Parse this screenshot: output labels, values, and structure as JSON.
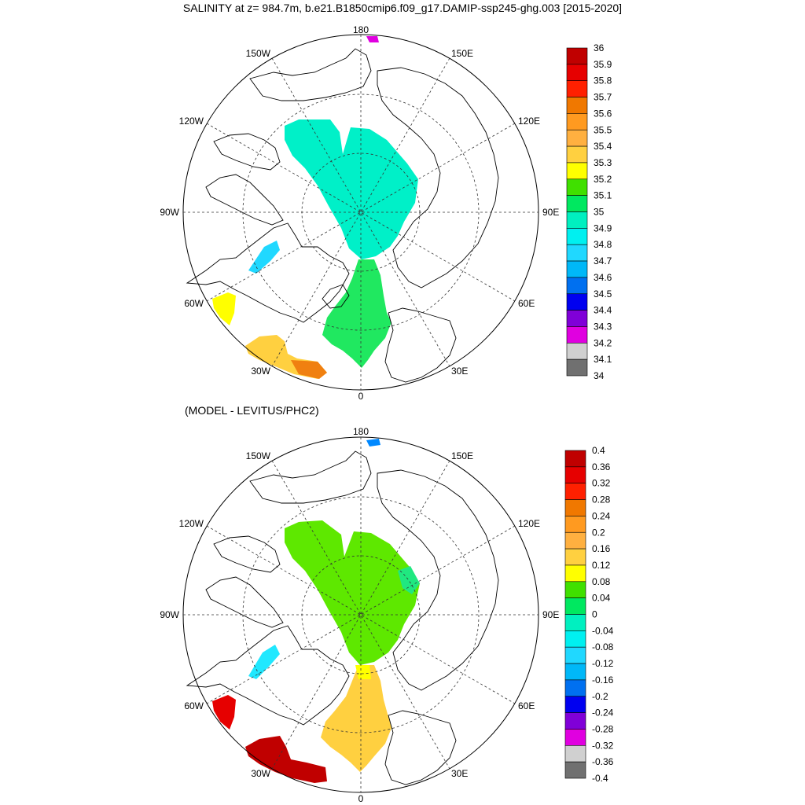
{
  "title": "SALINITY at z= 984.7m, b.e21.B1850cmip6.f09_g17.DAMIP-ssp245-ghg.003 [2015-2020]",
  "diff_title": "(MODEL - LEVITUS/PHC2)",
  "lon_labels": {
    "top": "180",
    "bottom": "0",
    "left": "90W",
    "right": "90E",
    "upper_left": "150W",
    "upper_right": "150E",
    "mid_upper_left": "120W",
    "mid_upper_right": "120E",
    "mid_lower_left": "60W",
    "mid_lower_right": "60E",
    "lower_left": "30W",
    "lower_right": "30E"
  },
  "colorbar_top": {
    "labels": [
      "36",
      "35.9",
      "35.8",
      "35.7",
      "35.6",
      "35.5",
      "35.4",
      "35.3",
      "35.2",
      "35.1",
      "35",
      "34.9",
      "34.8",
      "34.7",
      "34.6",
      "34.5",
      "34.4",
      "34.3",
      "34.2",
      "34.1",
      "34"
    ],
    "colors": [
      "#c00000",
      "#e60000",
      "#ff2000",
      "#f07800",
      "#ff9a20",
      "#ffb040",
      "#ffd040",
      "#ffff00",
      "#40e000",
      "#00e860",
      "#00f0c0",
      "#00f0f0",
      "#20d8ff",
      "#00b8f8",
      "#0070f0",
      "#0000f0",
      "#8000d8",
      "#e000e0",
      "#d0d0d0",
      "#707070"
    ]
  },
  "colorbar_bottom": {
    "labels": [
      "0.4",
      "0.36",
      "0.32",
      "0.28",
      "0.24",
      "0.2",
      "0.16",
      "0.12",
      "0.08",
      "0.04",
      "0",
      "-0.04",
      "-0.08",
      "-0.12",
      "-0.16",
      "-0.2",
      "-0.24",
      "-0.28",
      "-0.32",
      "-0.36",
      "-0.4"
    ],
    "colors": [
      "#c00000",
      "#e60000",
      "#ff2000",
      "#f07800",
      "#ff9a20",
      "#ffb040",
      "#ffd040",
      "#ffff00",
      "#40e000",
      "#00e860",
      "#00f0c0",
      "#00f0f0",
      "#20d8ff",
      "#00b8f8",
      "#0070f0",
      "#0000f0",
      "#8000d8",
      "#e000e0",
      "#d0d0d0",
      "#707070"
    ]
  }
}
